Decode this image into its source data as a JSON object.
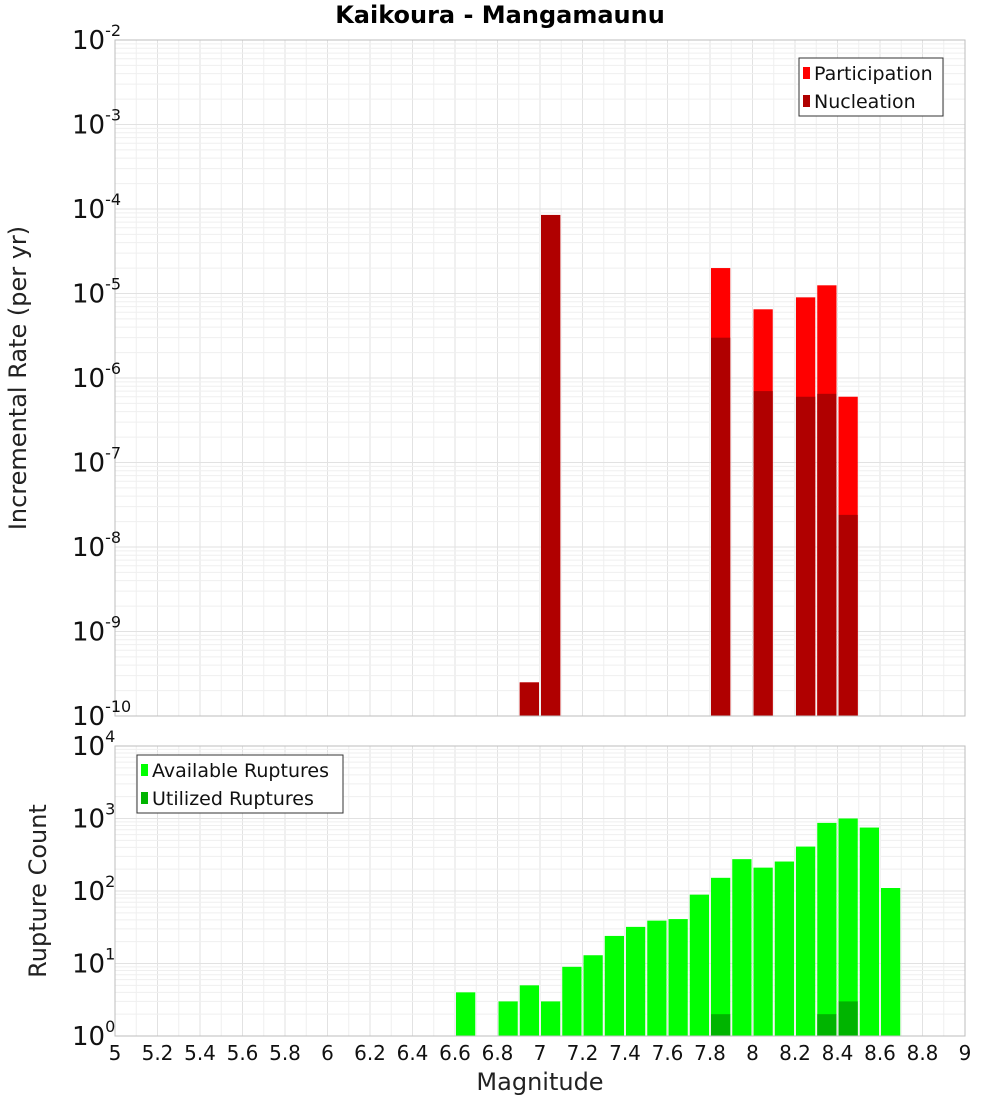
{
  "chart_data": [
    {
      "type": "bar",
      "title": "Kaikoura - Mangamaunu",
      "xlabel": "Magnitude",
      "ylabel": "Incremental Rate (per yr)",
      "yscale": "log",
      "ylim": [
        1e-10,
        0.01
      ],
      "xlim": [
        5,
        9
      ],
      "bin_width": 0.1,
      "legend_position": "top-right",
      "series": [
        {
          "name": "Participation",
          "color": "#ff0000",
          "points": [
            {
              "x": 6.95,
              "y": 2.5e-10
            },
            {
              "x": 7.05,
              "y": 8.5e-05
            },
            {
              "x": 7.85,
              "y": 2e-05
            },
            {
              "x": 8.05,
              "y": 6.5e-06
            },
            {
              "x": 8.25,
              "y": 9e-06
            },
            {
              "x": 8.35,
              "y": 1.25e-05
            },
            {
              "x": 8.45,
              "y": 6e-07
            }
          ]
        },
        {
          "name": "Nucleation",
          "color": "#b00000",
          "points": [
            {
              "x": 6.95,
              "y": 2.5e-10
            },
            {
              "x": 7.05,
              "y": 8.5e-05
            },
            {
              "x": 7.85,
              "y": 3e-06
            },
            {
              "x": 8.05,
              "y": 7e-07
            },
            {
              "x": 8.25,
              "y": 6e-07
            },
            {
              "x": 8.35,
              "y": 6.5e-07
            },
            {
              "x": 8.45,
              "y": 2.4e-08
            }
          ]
        }
      ]
    },
    {
      "type": "bar",
      "xlabel": "Magnitude",
      "ylabel": "Rupture Count",
      "yscale": "log",
      "ylim": [
        1,
        10000
      ],
      "xlim": [
        5,
        9
      ],
      "bin_width": 0.1,
      "legend_position": "top-left",
      "series": [
        {
          "name": "Available Ruptures",
          "color": "#00ff00",
          "points": [
            {
              "x": 6.65,
              "y": 4
            },
            {
              "x": 6.85,
              "y": 3
            },
            {
              "x": 6.95,
              "y": 5
            },
            {
              "x": 7.05,
              "y": 3
            },
            {
              "x": 7.15,
              "y": 9
            },
            {
              "x": 7.25,
              "y": 13
            },
            {
              "x": 7.35,
              "y": 24
            },
            {
              "x": 7.45,
              "y": 32
            },
            {
              "x": 7.55,
              "y": 39
            },
            {
              "x": 7.65,
              "y": 41
            },
            {
              "x": 7.75,
              "y": 89
            },
            {
              "x": 7.85,
              "y": 152
            },
            {
              "x": 7.95,
              "y": 275
            },
            {
              "x": 8.05,
              "y": 210
            },
            {
              "x": 8.15,
              "y": 255
            },
            {
              "x": 8.25,
              "y": 410
            },
            {
              "x": 8.35,
              "y": 870
            },
            {
              "x": 8.45,
              "y": 1000
            },
            {
              "x": 8.55,
              "y": 750
            },
            {
              "x": 8.65,
              "y": 110
            }
          ]
        },
        {
          "name": "Utilized Ruptures",
          "color": "#00b400",
          "points": [
            {
              "x": 6.95,
              "y": 1
            },
            {
              "x": 7.05,
              "y": 1
            },
            {
              "x": 7.85,
              "y": 2
            },
            {
              "x": 8.05,
              "y": 1
            },
            {
              "x": 8.25,
              "y": 1
            },
            {
              "x": 8.35,
              "y": 2
            },
            {
              "x": 8.45,
              "y": 3
            }
          ]
        }
      ]
    }
  ],
  "x_ticks": [
    "5",
    "5.2",
    "5.4",
    "5.6",
    "5.8",
    "6",
    "6.2",
    "6.4",
    "6.6",
    "6.8",
    "7",
    "7.2",
    "7.4",
    "7.6",
    "7.8",
    "8",
    "8.2",
    "8.4",
    "8.6",
    "8.8",
    "9"
  ],
  "top_y_ticks": [
    {
      "base": "10",
      "exp": "-2"
    },
    {
      "base": "10",
      "exp": "-3"
    },
    {
      "base": "10",
      "exp": "-4"
    },
    {
      "base": "10",
      "exp": "-5"
    },
    {
      "base": "10",
      "exp": "-6"
    },
    {
      "base": "10",
      "exp": "-7"
    },
    {
      "base": "10",
      "exp": "-8"
    },
    {
      "base": "10",
      "exp": "-9"
    },
    {
      "base": "10",
      "exp": "-10"
    }
  ],
  "bottom_y_ticks": [
    {
      "base": "10",
      "exp": "4"
    },
    {
      "base": "10",
      "exp": "3"
    },
    {
      "base": "10",
      "exp": "2"
    },
    {
      "base": "10",
      "exp": "1"
    },
    {
      "base": "10",
      "exp": "0"
    }
  ]
}
